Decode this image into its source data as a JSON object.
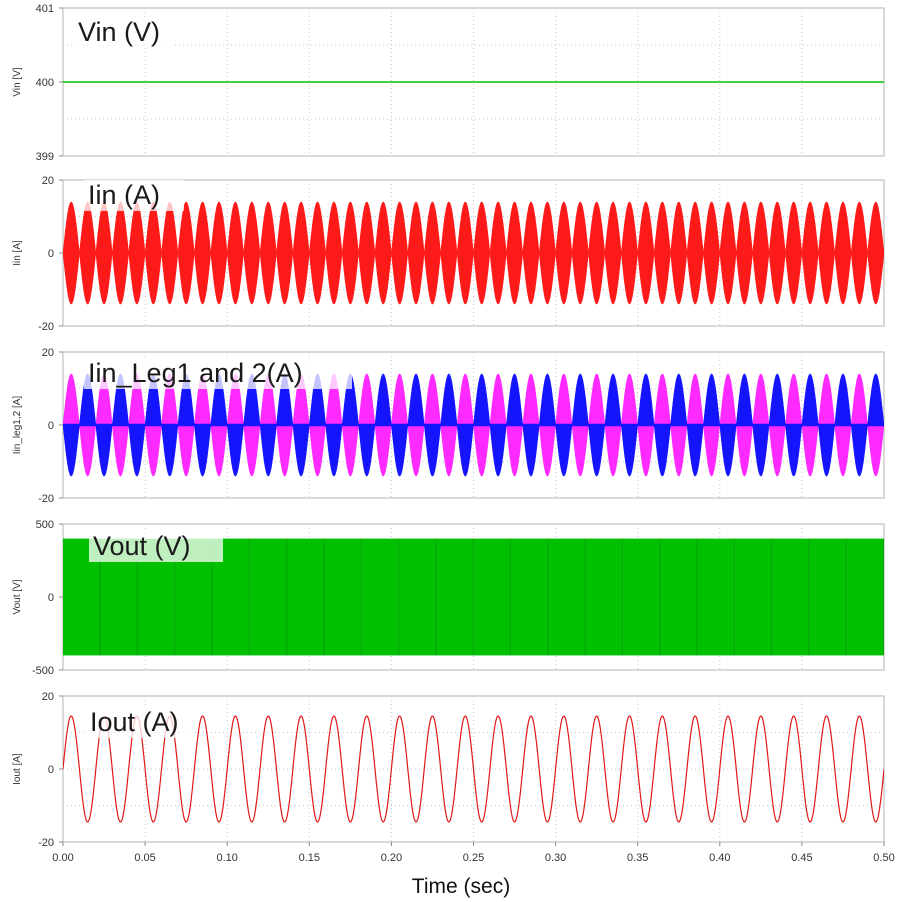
{
  "page": {
    "x_axis_label": "Time (sec)"
  },
  "colors": {
    "vin": "#00c000",
    "iin": "#ff1a1a",
    "leg1": "#ff2aff",
    "leg2": "#1414ff",
    "vout": "#00c000",
    "iout": "#e21818",
    "grid": "#c8c8c8",
    "frame": "#b4b4b4"
  },
  "chart_data": [
    {
      "type": "line",
      "title": "Vin (V)",
      "ylabel": "Vin [V]",
      "xlim": [
        0,
        0.5
      ],
      "ylim": [
        399,
        401
      ],
      "yticks": [
        "401",
        "400",
        "399"
      ],
      "series": [
        {
          "x": [
            0,
            0.5
          ],
          "values": [
            400,
            400
          ]
        }
      ],
      "grid": true
    },
    {
      "type": "line",
      "title": "Iin (A)",
      "ylabel": "Iin [A]",
      "xlim": [
        0,
        0.5
      ],
      "ylim": [
        -20,
        20
      ],
      "yticks": [
        "20",
        "0",
        "-20"
      ],
      "series": [
        {
          "frequency_hz": 100,
          "envelope_amplitude": 14
        }
      ],
      "grid": true
    },
    {
      "type": "line",
      "title": "Iin_Leg1 and 2(A)",
      "ylabel": "Iin_leg1,2 [A]",
      "xlim": [
        0,
        0.5
      ],
      "ylim": [
        -20,
        20
      ],
      "yticks": [
        "20",
        "0",
        "-20"
      ],
      "series": [
        {
          "frequency_hz": 50,
          "peak_amplitude": 14,
          "phase": "positive half first"
        },
        {
          "frequency_hz": 50,
          "peak_amplitude": 14,
          "phase": "negative half first"
        }
      ],
      "grid": true
    },
    {
      "type": "area",
      "title": "Vout (V)",
      "ylabel": "Vout [V]",
      "xlim": [
        0,
        0.5
      ],
      "ylim": [
        -500,
        500
      ],
      "yticks": [
        "500",
        "0",
        "-500"
      ],
      "series": [
        {
          "values_range": [
            -400,
            400
          ]
        }
      ],
      "grid": true
    },
    {
      "type": "line",
      "title": "Iout (A)",
      "ylabel": "Iout [A]",
      "xlim": [
        0,
        0.5
      ],
      "ylim": [
        -20,
        20
      ],
      "yticks": [
        "20",
        "0",
        "-20"
      ],
      "series": [
        {
          "frequency_hz": 50,
          "amplitude": 14.5,
          "phase_deg": 0
        }
      ],
      "xticks": [
        "0.00",
        "0.05",
        "0.10",
        "0.15",
        "0.20",
        "0.25",
        "0.30",
        "0.35",
        "0.40",
        "0.45",
        "0.50"
      ],
      "grid": true
    }
  ]
}
